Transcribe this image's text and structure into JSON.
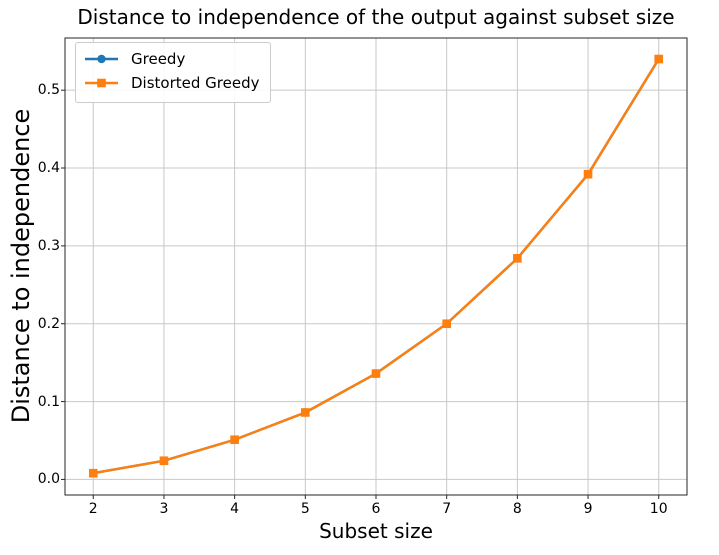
{
  "chart_data": {
    "type": "line",
    "title": "Distance to independence of the output against subset size",
    "xlabel": "Subset size",
    "ylabel": "Distance to independence",
    "x": [
      2,
      3,
      4,
      5,
      6,
      7,
      8,
      9,
      10
    ],
    "series": [
      {
        "name": "Greedy",
        "color": "#1f77b4",
        "marker": "circle",
        "values": [
          0.008,
          0.024,
          0.051,
          0.086,
          0.136,
          0.2,
          0.284,
          0.392,
          0.54
        ]
      },
      {
        "name": "Distorted Greedy",
        "color": "#ff7f0e",
        "marker": "square",
        "values": [
          0.008,
          0.024,
          0.051,
          0.086,
          0.136,
          0.2,
          0.284,
          0.392,
          0.54
        ]
      }
    ],
    "xlim": [
      1.6,
      10.4
    ],
    "ylim": [
      -0.02,
      0.567
    ],
    "xticks": [
      2,
      3,
      4,
      5,
      6,
      7,
      8,
      9,
      10
    ],
    "xtick_labels": [
      "2",
      "3",
      "4",
      "5",
      "6",
      "7",
      "8",
      "9",
      "10"
    ],
    "yticks": [
      0.0,
      0.1,
      0.2,
      0.3,
      0.4,
      0.5
    ],
    "ytick_labels": [
      "0.0",
      "0.1",
      "0.2",
      "0.3",
      "0.4",
      "0.5"
    ],
    "grid": true,
    "grid_color": "#c8c8c8",
    "spine_color": "#262626",
    "legend_position": "upper-left"
  }
}
